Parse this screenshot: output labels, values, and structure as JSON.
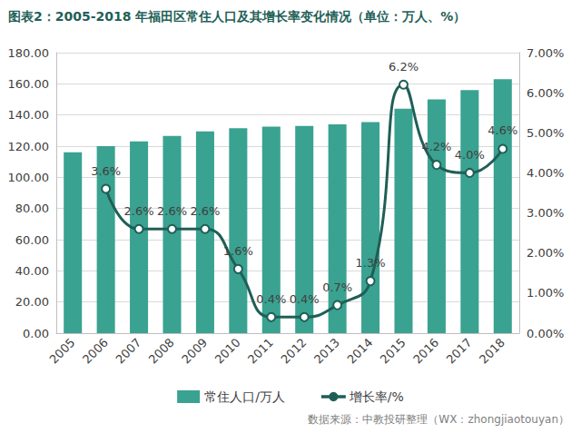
{
  "chart_data": {
    "type": "bar",
    "title": "图表2：2005-2018 年福田区常住人口及其增长率变化情况（单位：万人、%）",
    "source": "数据来源：中教投研整理（WX：zhongjiaotouyan）",
    "categories": [
      "2005",
      "2006",
      "2007",
      "2008",
      "2009",
      "2010",
      "2011",
      "2012",
      "2013",
      "2014",
      "2015",
      "2016",
      "2017",
      "2018"
    ],
    "series": [
      {
        "name": "常住人口/万人",
        "type": "bar",
        "color": "#3aa290",
        "values": [
          116,
          120,
          123,
          126.5,
          129.5,
          131.5,
          132.5,
          133,
          134,
          135.5,
          144,
          150,
          156,
          163
        ]
      },
      {
        "name": "增长率/%",
        "type": "line",
        "axis": "y2",
        "color": "#1f5f57",
        "marker": "circle",
        "data_labels": true,
        "values": [
          null,
          3.6,
          2.6,
          2.6,
          2.6,
          1.6,
          0.4,
          0.4,
          0.7,
          1.3,
          6.2,
          4.2,
          4.0,
          4.6
        ],
        "value_labels": [
          null,
          "3.6%",
          "2.6%",
          "2.6%",
          "2.6%",
          "1.6%",
          "0.4%",
          "0.4%",
          "0.7%",
          "1.3%",
          "6.2%",
          "4.2%",
          "4.0%",
          "4.6%"
        ]
      }
    ],
    "ylim": [
      0,
      180
    ],
    "yticks": [
      {
        "value": 0,
        "label": "0.00"
      },
      {
        "value": 20,
        "label": "20.00"
      },
      {
        "value": 40,
        "label": "40.00"
      },
      {
        "value": 60,
        "label": "60.00"
      },
      {
        "value": 80,
        "label": "80.00"
      },
      {
        "value": 100,
        "label": "100.00"
      },
      {
        "value": 120,
        "label": "120.00"
      },
      {
        "value": 140,
        "label": "140.00"
      },
      {
        "value": 160,
        "label": "160.00"
      },
      {
        "value": 180,
        "label": "180.00"
      }
    ],
    "y2lim": [
      0,
      7
    ],
    "y2ticks": [
      {
        "value": 0,
        "label": "0.00%"
      },
      {
        "value": 1,
        "label": "1.00%"
      },
      {
        "value": 2,
        "label": "2.00%"
      },
      {
        "value": 3,
        "label": "3.00%"
      },
      {
        "value": 4,
        "label": "4.00%"
      },
      {
        "value": 5,
        "label": "5.00%"
      },
      {
        "value": 6,
        "label": "6.00%"
      },
      {
        "value": 7,
        "label": "7.00%"
      }
    ],
    "grid": true,
    "legend": "bottom"
  }
}
